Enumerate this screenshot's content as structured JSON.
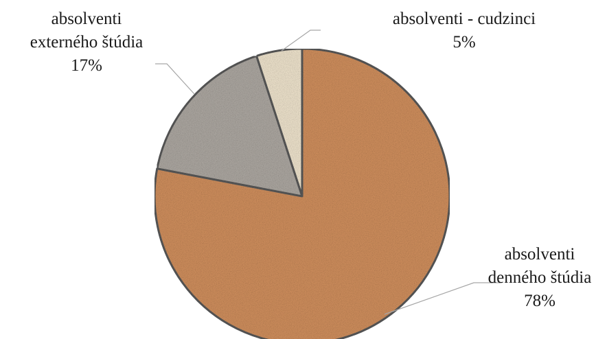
{
  "chart_data": {
    "type": "pie",
    "title": "",
    "slices": [
      {
        "label_lines": [
          "absolventi",
          "denného štúdia"
        ],
        "value_label": "78%",
        "value": 78,
        "color": "#c98a5a"
      },
      {
        "label_lines": [
          "absolventi",
          "externého štúdia"
        ],
        "value_label": "17%",
        "value": 17,
        "color": "#a7a29c"
      },
      {
        "label_lines": [
          "absolventi - cudzinci"
        ],
        "value_label": "5%",
        "value": 5,
        "color": "#e7dcc6"
      }
    ],
    "start": "top",
    "direction": "clockwise",
    "legend": "none",
    "data_labels": "outside-with-leader-lines"
  }
}
